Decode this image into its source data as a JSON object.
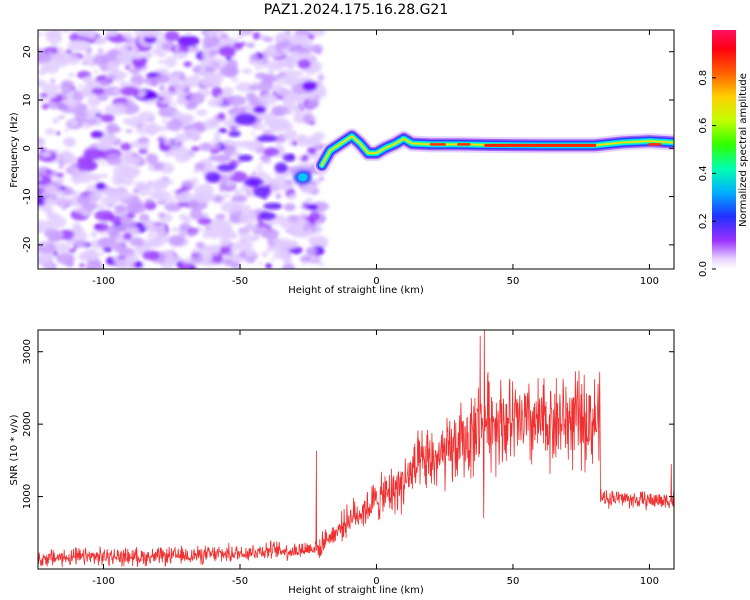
{
  "title": "PAZ1.2024.175.16.28.G21",
  "chart_data": [
    {
      "type": "heatmap",
      "xlabel": "Height of straight line (km)",
      "ylabel": "Frequency (Hz)",
      "xlim": [
        -124,
        109
      ],
      "ylim": [
        -25,
        24.5
      ],
      "xticks": [
        -100,
        -50,
        0,
        50,
        100
      ],
      "yticks": [
        -20,
        -10,
        0,
        10,
        20
      ],
      "colorbar": {
        "label": "Normalized spectral amplitude",
        "range": [
          0,
          1
        ],
        "ticks": [
          "0.0",
          "0.2",
          "0.4",
          "0.6",
          "0.8"
        ],
        "colormap": "gist_rainbow_r"
      },
      "noise_region": {
        "x": [
          -124,
          -20
        ],
        "y": [
          -25,
          24.5
        ]
      },
      "ridge": [
        {
          "x": -20,
          "y": -3.5
        },
        {
          "x": -17,
          "y": -0.5
        },
        {
          "x": -13,
          "y": 1
        },
        {
          "x": -9,
          "y": 2.5
        },
        {
          "x": -6,
          "y": 1
        },
        {
          "x": -3,
          "y": -1
        },
        {
          "x": 0,
          "y": -1
        },
        {
          "x": 3,
          "y": 0
        },
        {
          "x": 7,
          "y": 1
        },
        {
          "x": 10,
          "y": 2
        },
        {
          "x": 13,
          "y": 1
        },
        {
          "x": 20,
          "y": 0.8
        },
        {
          "x": 30,
          "y": 0.8
        },
        {
          "x": 40,
          "y": 0.7
        },
        {
          "x": 60,
          "y": 0.6
        },
        {
          "x": 80,
          "y": 0.6
        },
        {
          "x": 90,
          "y": 1.2
        },
        {
          "x": 100,
          "y": 1.5
        },
        {
          "x": 109,
          "y": 1.2
        }
      ],
      "ridge_peak_segment": {
        "x": [
          40,
          80
        ],
        "y": 0.6
      },
      "hot_blob": {
        "x": -27,
        "y": -6
      }
    },
    {
      "type": "line",
      "xlabel": "Height of straight line (km)",
      "ylabel": "SNR (10 * v/v)",
      "xlim": [
        -124,
        109
      ],
      "ylim": [
        0,
        3300
      ],
      "xticks": [
        -100,
        -50,
        0,
        50,
        100
      ],
      "yticks": [
        1000,
        2000,
        3000
      ],
      "series": [
        {
          "color": "#f03030",
          "x": [
            -124,
            -100,
            -80,
            -60,
            -50,
            -40,
            -30,
            -22,
            -20,
            -19,
            -15,
            -10,
            -5,
            0,
            5,
            10,
            15,
            20,
            25,
            30,
            35,
            38,
            39,
            40,
            42,
            45,
            50,
            55,
            60,
            65,
            70,
            75,
            80,
            82,
            83,
            85,
            90,
            95,
            100,
            105,
            109
          ],
          "values": [
            150,
            170,
            170,
            200,
            220,
            260,
            250,
            300,
            250,
            400,
            500,
            700,
            800,
            950,
            1050,
            1200,
            1400,
            1500,
            1550,
            1700,
            1850,
            2000,
            2000,
            2050,
            2050,
            2050,
            2000,
            2000,
            2000,
            2050,
            2050,
            2050,
            2050,
            2050,
            980,
            980,
            980,
            950,
            950,
            950,
            950
          ]
        }
      ],
      "spikes": [
        {
          "x": -22,
          "y": 1630
        },
        {
          "x": 38,
          "y": 3220
        },
        {
          "x": 39.3,
          "y": 700
        },
        {
          "x": 39.5,
          "y": 3350
        },
        {
          "x": 108,
          "y": 1450
        }
      ]
    }
  ]
}
